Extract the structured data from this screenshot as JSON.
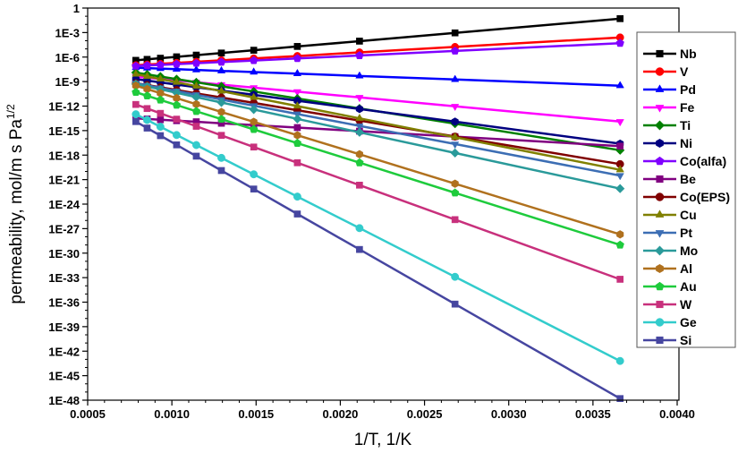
{
  "chart_data": {
    "type": "line",
    "title": "",
    "xlabel": "1/T, 1/K",
    "ylabel": "permeability, mol/m s Pa",
    "ylabel_superscript": "1/2",
    "xlim": [
      0.0005,
      0.004
    ],
    "ylim_log10": [
      -48,
      0
    ],
    "yscale": "log",
    "x_ticks": [
      "0.0005",
      "0.0010",
      "0.0015",
      "0.0020",
      "0.0025",
      "0.0030",
      "0.0035",
      "0.0040"
    ],
    "x_tick_values": [
      0.0005,
      0.001,
      0.0015,
      0.002,
      0.0025,
      0.003,
      0.0035,
      0.004
    ],
    "y_ticks": [
      "1",
      "1E-3",
      "1E-6",
      "1E-9",
      "1E-12",
      "1E-15",
      "1E-18",
      "1E-21",
      "1E-24",
      "1E-27",
      "1E-30",
      "1E-33",
      "1E-36",
      "1E-39",
      "1E-42",
      "1E-45",
      "1E-48"
    ],
    "y_tick_log10": [
      0,
      -3,
      -6,
      -9,
      -12,
      -15,
      -18,
      -21,
      -24,
      -27,
      -30,
      -33,
      -36,
      -39,
      -42,
      -45,
      -48
    ],
    "legend_position": "right",
    "grid": false,
    "x": [
      0.000786,
      0.000853,
      0.000932,
      0.001028,
      0.001145,
      0.001294,
      0.001486,
      0.001745,
      0.002114,
      0.002681,
      0.003661
    ],
    "series": [
      {
        "name": "Nb",
        "color": "#000000",
        "marker": "square",
        "log10_values": [
          -6.4,
          -6.28,
          -6.14,
          -5.97,
          -5.76,
          -5.5,
          -5.16,
          -4.7,
          -4.05,
          -3.04,
          -1.3
        ]
      },
      {
        "name": "V",
        "color": "#ff0000",
        "marker": "circle",
        "log10_values": [
          -7.0,
          -6.92,
          -6.83,
          -6.71,
          -6.58,
          -6.4,
          -6.17,
          -5.87,
          -5.43,
          -4.76,
          -3.6
        ]
      },
      {
        "name": "Pd",
        "color": "#0000ff",
        "marker": "triangle-up",
        "log10_values": [
          -7.3,
          -7.35,
          -7.41,
          -7.49,
          -7.57,
          -7.69,
          -7.84,
          -8.03,
          -8.32,
          -8.75,
          -9.5
        ]
      },
      {
        "name": "Fe",
        "color": "#ff00ff",
        "marker": "triangle-down",
        "log10_values": [
          -8.4,
          -8.53,
          -8.68,
          -8.86,
          -9.09,
          -9.37,
          -9.74,
          -10.24,
          -10.94,
          -12.03,
          -13.9
        ]
      },
      {
        "name": "Ti",
        "color": "#008000",
        "marker": "diamond",
        "log10_values": [
          -7.9,
          -8.12,
          -8.38,
          -8.7,
          -9.09,
          -9.58,
          -10.21,
          -11.07,
          -12.29,
          -14.16,
          -17.4
        ]
      },
      {
        "name": "Ni",
        "color": "#000080",
        "marker": "hexagon",
        "log10_values": [
          -8.7,
          -8.88,
          -9.1,
          -9.37,
          -9.69,
          -10.1,
          -10.62,
          -11.34,
          -12.35,
          -13.91,
          -16.6
        ]
      },
      {
        "name": "Co(alfa)",
        "color": "#8000ff",
        "marker": "pentagon",
        "log10_values": [
          -7.1,
          -7.03,
          -6.96,
          -6.86,
          -6.75,
          -6.61,
          -6.42,
          -6.17,
          -5.81,
          -5.25,
          -4.3
        ]
      },
      {
        "name": "Be",
        "color": "#800080",
        "marker": "square",
        "log10_values": [
          -13.5,
          -13.58,
          -13.67,
          -13.79,
          -13.92,
          -14.1,
          -14.33,
          -14.63,
          -15.07,
          -15.74,
          -16.9
        ]
      },
      {
        "name": "Co(EPS)",
        "color": "#800000",
        "marker": "circle",
        "log10_values": [
          -9.2,
          -9.43,
          -9.7,
          -10.03,
          -10.44,
          -10.95,
          -11.61,
          -12.5,
          -13.77,
          -15.73,
          -19.1
        ]
      },
      {
        "name": "Cu",
        "color": "#808000",
        "marker": "triangle-up",
        "log10_values": [
          -8.1,
          -8.37,
          -8.69,
          -9.09,
          -9.56,
          -10.17,
          -10.95,
          -12.0,
          -13.5,
          -15.81,
          -19.8
        ]
      },
      {
        "name": "Pt",
        "color": "#3c6eb4",
        "marker": "triangle-down",
        "log10_values": [
          -9.2,
          -9.46,
          -9.77,
          -10.15,
          -10.61,
          -11.2,
          -11.95,
          -12.97,
          -14.42,
          -16.65,
          -20.5
        ]
      },
      {
        "name": "Mo",
        "color": "#2a9a9a",
        "marker": "diamond",
        "log10_values": [
          -9.3,
          -9.6,
          -9.95,
          -10.38,
          -10.9,
          -11.56,
          -12.42,
          -13.57,
          -15.21,
          -17.74,
          -22.1
        ]
      },
      {
        "name": "Al",
        "color": "#b0711e",
        "marker": "hexagon",
        "log10_values": [
          -9.5,
          -9.92,
          -10.42,
          -11.03,
          -11.77,
          -12.72,
          -13.93,
          -15.57,
          -17.9,
          -21.5,
          -27.7
        ]
      },
      {
        "name": "Au",
        "color": "#1ecb3c",
        "marker": "pentagon",
        "log10_values": [
          -10.3,
          -10.74,
          -11.25,
          -11.87,
          -12.64,
          -13.6,
          -14.85,
          -16.54,
          -18.93,
          -22.62,
          -29.0
        ]
      },
      {
        "name": "W",
        "color": "#c8307c",
        "marker": "square",
        "log10_values": [
          -11.8,
          -12.3,
          -12.89,
          -13.6,
          -14.47,
          -15.58,
          -17.01,
          -18.94,
          -21.68,
          -25.9,
          -33.2
        ]
      },
      {
        "name": "Ge",
        "color": "#33cccc",
        "marker": "circle",
        "log10_values": [
          -13.0,
          -13.7,
          -14.53,
          -15.54,
          -16.77,
          -18.34,
          -20.35,
          -23.08,
          -26.94,
          -32.9,
          -43.2
        ]
      },
      {
        "name": "Si",
        "color": "#4646a0",
        "marker": "square",
        "log10_values": [
          -13.9,
          -14.69,
          -15.62,
          -16.75,
          -18.13,
          -19.89,
          -22.15,
          -25.21,
          -29.55,
          -36.24,
          -47.8
        ]
      }
    ]
  }
}
